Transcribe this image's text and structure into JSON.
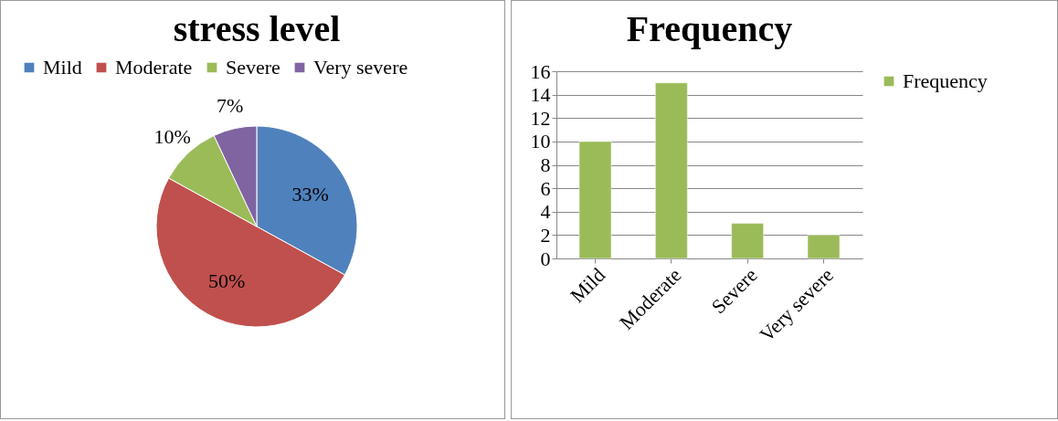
{
  "chart_data": [
    {
      "type": "pie",
      "title": "stress level",
      "categories": [
        "Mild",
        "Moderate",
        "Severe",
        "Very severe"
      ],
      "values": [
        33,
        50,
        10,
        7
      ],
      "value_labels": [
        "33%",
        "50%",
        "10%",
        "7%"
      ],
      "colors": [
        "#4f81bd",
        "#c0504d",
        "#9bbb59",
        "#8064a2"
      ],
      "legend": "top"
    },
    {
      "type": "bar",
      "title": "Frequency",
      "categories": [
        "Mild",
        "Moderate",
        "Severe",
        "Very severe"
      ],
      "series": [
        {
          "name": "Frequency",
          "color": "#9bbb59",
          "values": [
            10,
            15,
            3,
            2
          ]
        }
      ],
      "ylim": [
        0,
        16
      ],
      "yticks": [
        0,
        2,
        4,
        6,
        8,
        10,
        12,
        14,
        16
      ],
      "grid": "y",
      "legend": "right"
    }
  ]
}
